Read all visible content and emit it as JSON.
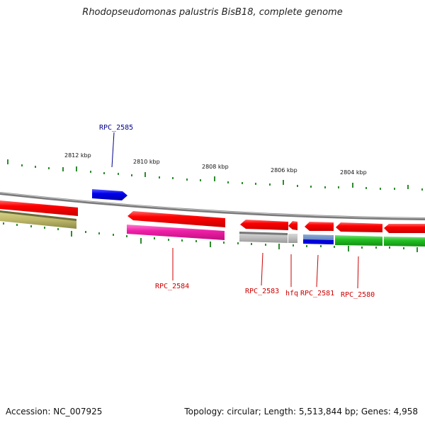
{
  "title": "Rhodopseudomonas palustris BisB18, complete genome",
  "footer": {
    "accession": "Accession: NC_007925",
    "summary": "Topology: circular; Length: 5,513,844 bp; Genes: 4,958"
  },
  "colors": {
    "backbone": "#8a8a8a",
    "ruler": "#2e8b2e",
    "cds": "#ee0000",
    "gene_label": "#cc0000",
    "highlight_label": "#00008b"
  },
  "ruler": {
    "tick_labels": [
      "2812 kbp",
      "2810 kbp",
      "2808 kbp",
      "2806 kbp",
      "2804 kbp"
    ]
  },
  "genes": [
    {
      "label": "RPC_2585",
      "color": "#0000dd",
      "label_color": "#00008b"
    },
    {
      "label": "RPC_2584",
      "color": "#ee0000",
      "label_color": "#cc0000"
    },
    {
      "label": "RPC_2583",
      "color": "#ee0000",
      "label_color": "#cc0000"
    },
    {
      "label": "hfq",
      "color": "#ee0000",
      "label_color": "#cc0000"
    },
    {
      "label": "RPC_2581",
      "color": "#ee0000",
      "label_color": "#cc0000"
    },
    {
      "label": "RPC_2580",
      "color": "#ee0000",
      "label_color": "#cc0000"
    }
  ]
}
